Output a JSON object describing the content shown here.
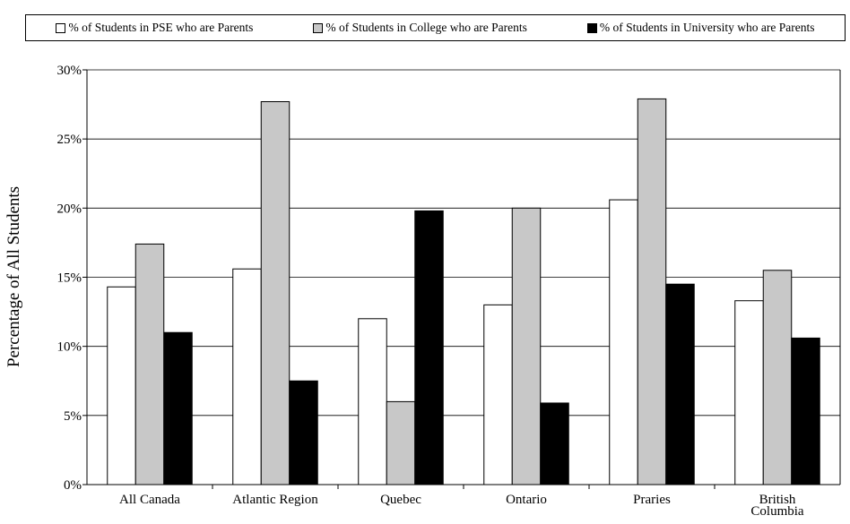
{
  "chart_data": {
    "type": "bar",
    "ylabel": "Percentage of All Students",
    "ylim": [
      0,
      30
    ],
    "y_ticks": [
      {
        "value": 0,
        "label": "0%"
      },
      {
        "value": 5,
        "label": "5%"
      },
      {
        "value": 10,
        "label": "10%"
      },
      {
        "value": 15,
        "label": "15%"
      },
      {
        "value": 20,
        "label": "20%"
      },
      {
        "value": 25,
        "label": "25%"
      },
      {
        "value": 30,
        "label": "30%"
      }
    ],
    "grid": true,
    "legend_position": "top",
    "categories": [
      {
        "lines": [
          "All Canada"
        ]
      },
      {
        "lines": [
          "Atlantic Region"
        ]
      },
      {
        "lines": [
          "Quebec"
        ]
      },
      {
        "lines": [
          "Ontario"
        ]
      },
      {
        "lines": [
          "Praries"
        ]
      },
      {
        "lines": [
          "British",
          "Columbia"
        ]
      }
    ],
    "series": [
      {
        "name": "% of Students in PSE who are Parents",
        "color": "#ffffff",
        "values": [
          14.3,
          15.6,
          12.0,
          13.0,
          20.6,
          13.3
        ]
      },
      {
        "name": "% of Students in College who are Parents",
        "color": "#c8c8c8",
        "values": [
          17.4,
          27.7,
          6.0,
          20.0,
          27.9,
          15.5
        ]
      },
      {
        "name": "% of Students in University who are Parents",
        "color": "#000000",
        "values": [
          11.0,
          7.5,
          19.8,
          5.9,
          14.5,
          10.6
        ]
      }
    ]
  }
}
